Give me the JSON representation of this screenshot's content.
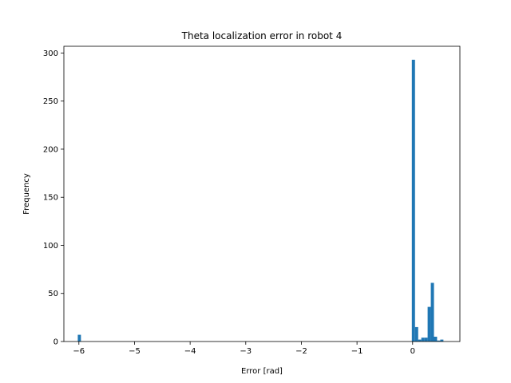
{
  "chart_data": {
    "type": "bar",
    "title": "Theta localization error in robot 4",
    "xlabel": "Error [rad]",
    "ylabel": "Frequency",
    "xlim": [
      -6.27,
      0.85
    ],
    "ylim": [
      0,
      307
    ],
    "xticks": [
      -6,
      -5,
      -4,
      -3,
      -2,
      -1,
      0
    ],
    "yticks": [
      0,
      50,
      100,
      150,
      200,
      250,
      300
    ],
    "bin_width": 0.0568,
    "grid": false,
    "color": "#1f77b4",
    "bins": [
      {
        "x": -6.02,
        "value": 7
      },
      {
        "x": -0.014,
        "value": 293
      },
      {
        "x": 0.043,
        "value": 15
      },
      {
        "x": 0.099,
        "value": 2
      },
      {
        "x": 0.156,
        "value": 4
      },
      {
        "x": 0.213,
        "value": 4
      },
      {
        "x": 0.27,
        "value": 36
      },
      {
        "x": 0.327,
        "value": 61
      },
      {
        "x": 0.383,
        "value": 5
      },
      {
        "x": 0.44,
        "value": 1
      },
      {
        "x": 0.497,
        "value": 2
      }
    ]
  }
}
